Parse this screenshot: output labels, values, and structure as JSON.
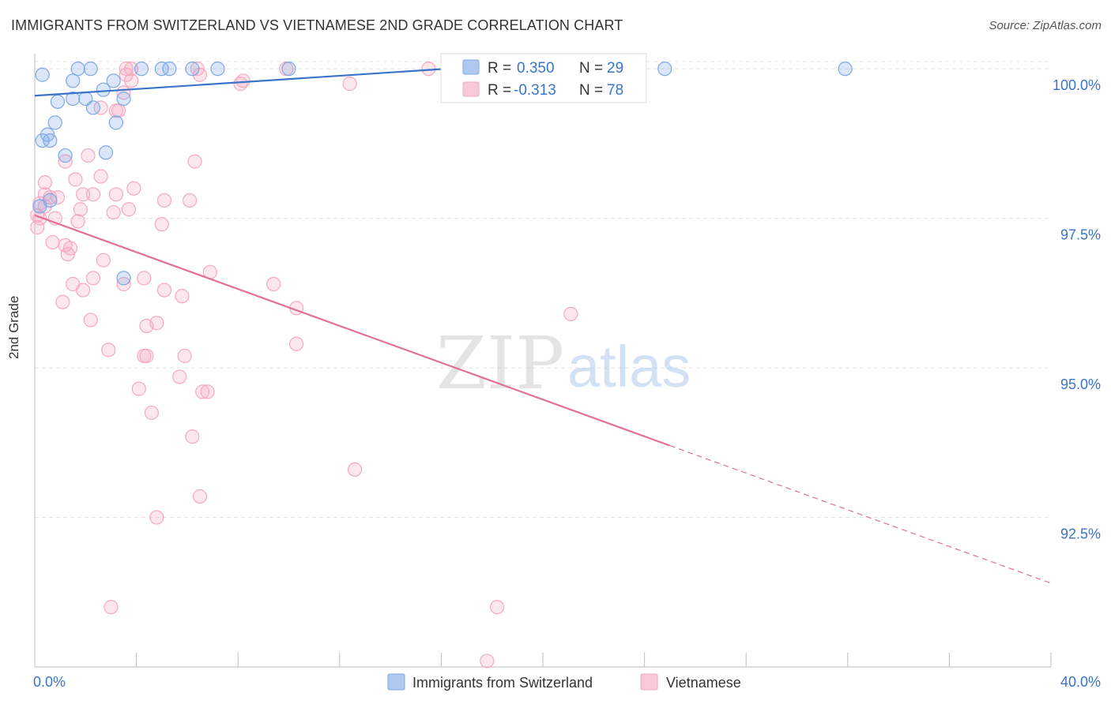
{
  "title": "IMMIGRANTS FROM SWITZERLAND VS VIETNAMESE 2ND GRADE CORRELATION CHART",
  "source": "Source: ZipAtlas.com",
  "watermark": {
    "zip": "ZIP",
    "atlas": "atlas"
  },
  "chart_data": {
    "type": "scatter",
    "xlabel": "",
    "ylabel": "2nd Grade",
    "xlim": [
      0.0,
      40.0
    ],
    "ylim": [
      90.0,
      100.2
    ],
    "x_tick_labels": [
      "0.0%",
      "40.0%"
    ],
    "y_ticks": [
      92.5,
      95.0,
      97.5,
      100.0
    ],
    "y_tick_labels": [
      "92.5%",
      "95.0%",
      "97.5%",
      "100.0%"
    ],
    "legend_position": "top-center",
    "series": [
      {
        "name": "Immigrants from Switzerland",
        "color": "#7ea8e6",
        "line_color": "#3a74c8",
        "R": "0.350",
        "N": "29",
        "trend": {
          "x0": 0.0,
          "y0": 99.55,
          "x1": 18.0,
          "y1": 100.05,
          "dashed_to": null
        },
        "points": [
          [
            1.7,
            100
          ],
          [
            2.2,
            100
          ],
          [
            4.2,
            100
          ],
          [
            5.0,
            100
          ],
          [
            5.3,
            100
          ],
          [
            6.2,
            100
          ],
          [
            7.2,
            100
          ],
          [
            10.0,
            100
          ],
          [
            24.8,
            100
          ],
          [
            31.9,
            100
          ],
          [
            0.3,
            99.9
          ],
          [
            1.5,
            99.8
          ],
          [
            3.1,
            99.8
          ],
          [
            2.3,
            99.35
          ],
          [
            2.7,
            99.65
          ],
          [
            1.5,
            99.5
          ],
          [
            3.5,
            99.5
          ],
          [
            2.0,
            99.5
          ],
          [
            0.9,
            99.45
          ],
          [
            3.2,
            99.1
          ],
          [
            0.8,
            99.1
          ],
          [
            0.5,
            98.9
          ],
          [
            0.6,
            98.8
          ],
          [
            0.3,
            98.8
          ],
          [
            1.2,
            98.55
          ],
          [
            2.8,
            98.6
          ],
          [
            0.6,
            97.8
          ],
          [
            0.2,
            97.7
          ],
          [
            3.5,
            96.5
          ]
        ]
      },
      {
        "name": "Vietnamese",
        "color": "#f4a9c0",
        "line_color": "#e07098",
        "R": "-0.313",
        "N": "78",
        "trend": {
          "x0": 0.0,
          "y0": 97.55,
          "x1": 25.0,
          "y1": 93.7,
          "dashed_to": {
            "x": 40.0,
            "y": 91.4
          }
        },
        "points": [
          [
            3.6,
            100
          ],
          [
            3.8,
            100
          ],
          [
            6.4,
            100
          ],
          [
            9.9,
            100
          ],
          [
            15.5,
            100
          ],
          [
            3.6,
            99.9
          ],
          [
            6.5,
            99.9
          ],
          [
            3.8,
            99.8
          ],
          [
            8.2,
            99.8
          ],
          [
            8.1,
            99.75
          ],
          [
            12.4,
            99.75
          ],
          [
            3.5,
            99.6
          ],
          [
            2.6,
            99.35
          ],
          [
            3.2,
            99.3
          ],
          [
            3.3,
            99.3
          ],
          [
            2.1,
            98.55
          ],
          [
            1.2,
            98.45
          ],
          [
            6.3,
            98.45
          ],
          [
            2.6,
            98.2
          ],
          [
            1.6,
            98.15
          ],
          [
            0.4,
            98.1
          ],
          [
            3.9,
            98.0
          ],
          [
            0.4,
            97.9
          ],
          [
            3.2,
            97.9
          ],
          [
            0.9,
            97.85
          ],
          [
            1.9,
            97.9
          ],
          [
            2.3,
            97.9
          ],
          [
            0.6,
            97.85
          ],
          [
            5.1,
            97.8
          ],
          [
            6.1,
            97.8
          ],
          [
            0.2,
            97.75
          ],
          [
            0.4,
            97.7
          ],
          [
            1.8,
            97.65
          ],
          [
            3.1,
            97.6
          ],
          [
            3.7,
            97.65
          ],
          [
            0.2,
            97.5
          ],
          [
            0.8,
            97.5
          ],
          [
            1.7,
            97.45
          ],
          [
            0.1,
            97.35
          ],
          [
            5.0,
            97.4
          ],
          [
            0.7,
            97.1
          ],
          [
            1.4,
            97.0
          ],
          [
            1.3,
            96.9
          ],
          [
            2.7,
            96.8
          ],
          [
            6.9,
            96.6
          ],
          [
            4.3,
            96.5
          ],
          [
            9.4,
            96.4
          ],
          [
            2.3,
            96.5
          ],
          [
            1.5,
            96.4
          ],
          [
            3.5,
            96.4
          ],
          [
            1.9,
            96.3
          ],
          [
            5.1,
            96.3
          ],
          [
            5.8,
            96.2
          ],
          [
            1.1,
            96.1
          ],
          [
            10.3,
            96.0
          ],
          [
            2.2,
            95.8
          ],
          [
            21.1,
            95.9
          ],
          [
            4.4,
            95.7
          ],
          [
            4.8,
            95.75
          ],
          [
            10.3,
            95.4
          ],
          [
            2.9,
            95.3
          ],
          [
            4.3,
            95.2
          ],
          [
            4.4,
            95.2
          ],
          [
            5.9,
            95.2
          ],
          [
            5.7,
            94.85
          ],
          [
            4.1,
            94.65
          ],
          [
            6.6,
            94.6
          ],
          [
            6.8,
            94.6
          ],
          [
            4.6,
            94.25
          ],
          [
            6.2,
            93.85
          ],
          [
            12.6,
            93.3
          ],
          [
            6.5,
            92.85
          ],
          [
            4.8,
            92.5
          ],
          [
            3.0,
            91.0
          ],
          [
            18.2,
            91.0
          ],
          [
            17.8,
            90.1
          ],
          [
            0.1,
            97.55
          ],
          [
            1.2,
            97.05
          ]
        ]
      }
    ]
  }
}
